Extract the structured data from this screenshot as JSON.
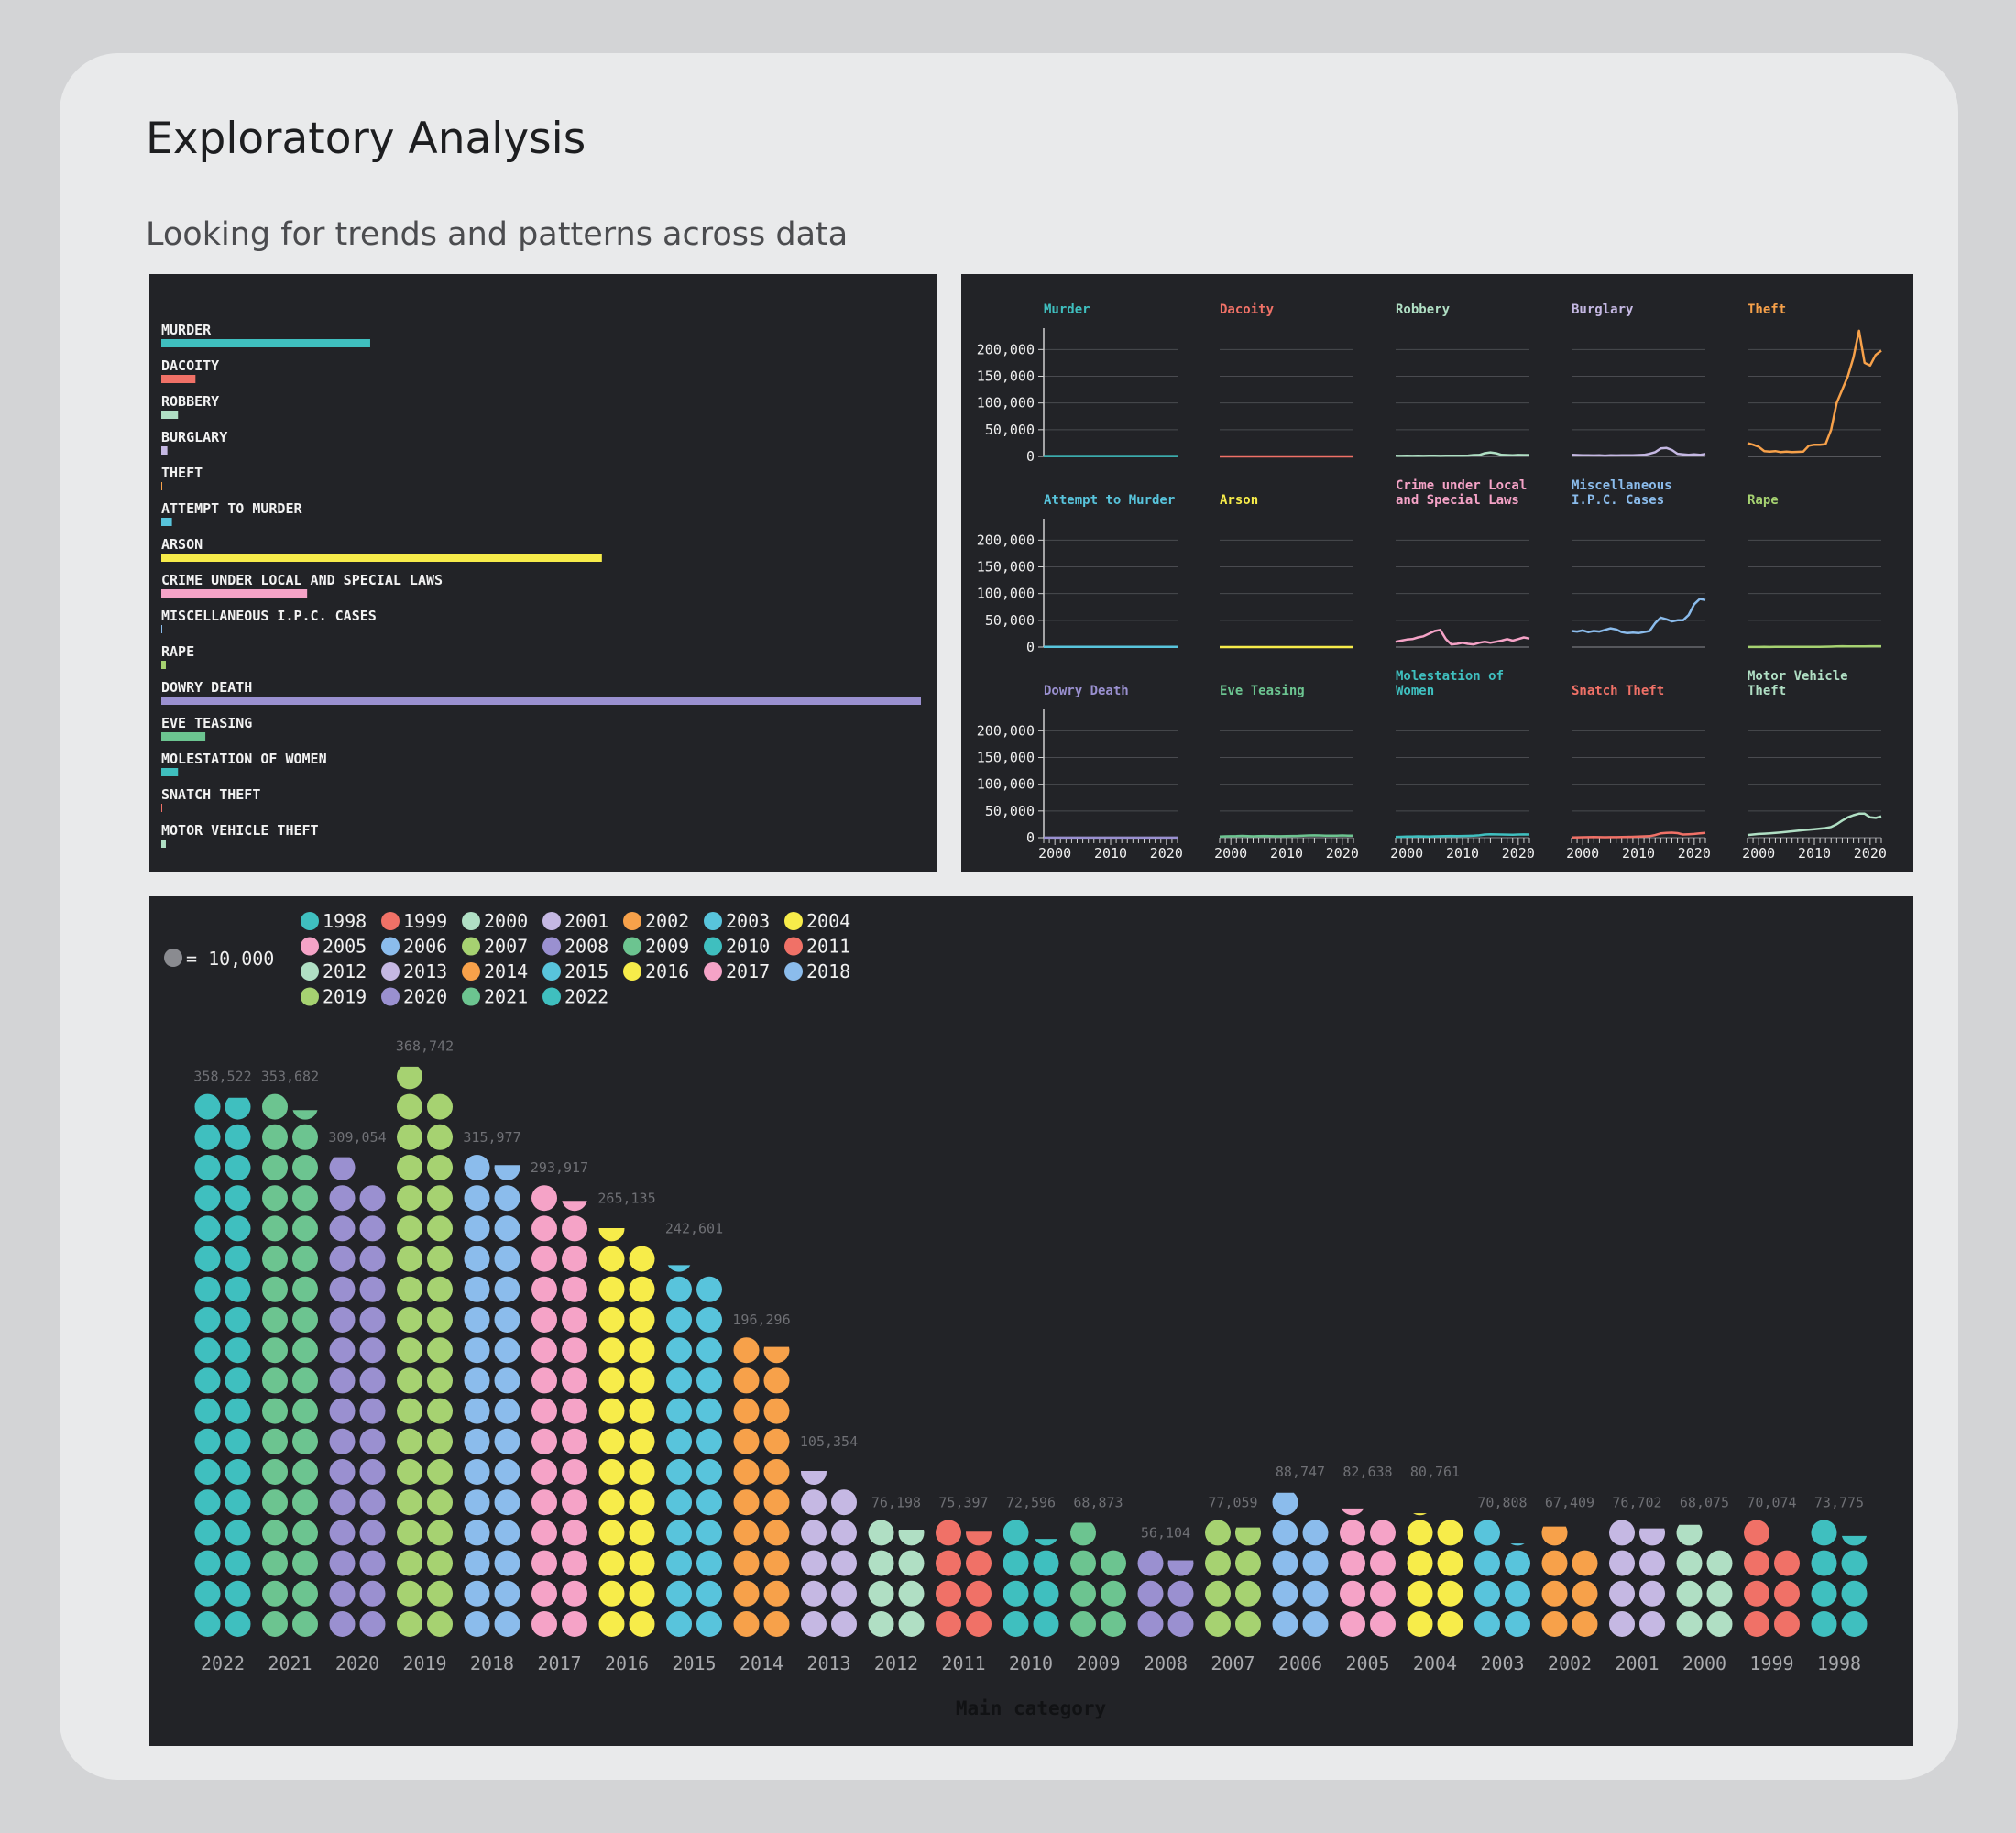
{
  "header": {
    "title": "Exploratory Analysis",
    "subtitle": "Looking for trends and patterns across data"
  },
  "colors": {
    "panel_bg": "#222327",
    "palette": [
      "#3fbfbf",
      "#f07167",
      "#b0dfc4",
      "#c5b8e3",
      "#f7a14a",
      "#58c4dc",
      "#f7ec4a",
      "#f5a3c7",
      "#8bbcec",
      "#a6d271",
      "#9a90d0",
      "#6cc490"
    ]
  },
  "chart_data": [
    {
      "type": "bar",
      "orientation": "horizontal",
      "categories": [
        "MURDER",
        "DACOITY",
        "ROBBERY",
        "BURGLARY",
        "THEFT",
        "ATTEMPT TO MURDER",
        "ARSON",
        "CRIME UNDER LOCAL AND SPECIAL LAWS",
        "MISCELLANEOUS I.P.C. CASES",
        "RAPE",
        "DOWRY DEATH",
        "EVE TEASING",
        "MOLESTATION OF WOMEN",
        "SNATCH THEFT",
        "MOTOR VEHICLE THEFT"
      ],
      "values": [
        27.5,
        4.5,
        2.2,
        0.8,
        0.0,
        1.4,
        58.0,
        19.2,
        0.0,
        0.6,
        100.0,
        5.8,
        2.2,
        0.0,
        0.6
      ],
      "bar_colors": [
        "#3fbfbf",
        "#f07167",
        "#b0dfc4",
        "#c5b8e3",
        "#f7a14a",
        "#58c4dc",
        "#f7ec4a",
        "#f5a3c7",
        "#8bbcec",
        "#a6d271",
        "#9a90d0",
        "#6cc490",
        "#3fbfbf",
        "#f07167",
        "#b0dfc4"
      ]
    },
    {
      "type": "line",
      "facets": [
        {
          "title_lines": [
            "Murder"
          ],
          "color": "#3fbfbf",
          "values": [
            700,
            720,
            700,
            690,
            710,
            700,
            690,
            710,
            700,
            720,
            730,
            700,
            710,
            690,
            700,
            720,
            700,
            710,
            690,
            700,
            720,
            700,
            690,
            710,
            700
          ]
        },
        {
          "title_lines": [
            "Dacoity"
          ],
          "color": "#f07167",
          "values": [
            50,
            50,
            50,
            50,
            50,
            50,
            50,
            50,
            50,
            50,
            50,
            50,
            50,
            50,
            50,
            50,
            50,
            50,
            50,
            50,
            50,
            50,
            50,
            50,
            50
          ]
        },
        {
          "title_lines": [
            "Robbery"
          ],
          "color": "#b0dfc4",
          "values": [
            1200,
            1100,
            1200,
            1100,
            1200,
            1100,
            1300,
            1200,
            1100,
            1200,
            1300,
            1200,
            1300,
            1500,
            2500,
            2800,
            6000,
            7500,
            6000,
            3000,
            2500,
            2300,
            2800,
            2500,
            2600
          ]
        },
        {
          "title_lines": [
            "Burglary"
          ],
          "color": "#c5b8e3",
          "values": [
            3000,
            2500,
            2000,
            2200,
            1800,
            2000,
            1500,
            2000,
            1800,
            2000,
            2200,
            2000,
            2500,
            3000,
            5000,
            8000,
            15000,
            16000,
            12000,
            5000,
            4000,
            3000,
            4000,
            3000,
            4500
          ]
        },
        {
          "title_lines": [
            "Theft"
          ],
          "color": "#f7a14a",
          "values": [
            25000,
            22000,
            18000,
            10000,
            9000,
            10000,
            8000,
            9000,
            8000,
            8500,
            9000,
            20000,
            22000,
            22000,
            23000,
            50000,
            100000,
            125000,
            150000,
            185000,
            235000,
            175000,
            170000,
            190000,
            198000
          ]
        },
        {
          "title_lines": [
            "Attempt to Murder"
          ],
          "color": "#58c4dc",
          "values": [
            300,
            300,
            300,
            300,
            300,
            300,
            300,
            300,
            300,
            300,
            300,
            300,
            300,
            300,
            300,
            350,
            350,
            350,
            350,
            350,
            300,
            300,
            300,
            300,
            300
          ]
        },
        {
          "title_lines": [
            "Arson"
          ],
          "color": "#f7ec4a",
          "values": [
            50,
            50,
            50,
            50,
            50,
            50,
            50,
            50,
            50,
            50,
            50,
            50,
            50,
            50,
            50,
            50,
            50,
            50,
            50,
            50,
            50,
            50,
            50,
            50,
            50
          ]
        },
        {
          "title_lines": [
            "Crime under Local",
            "and Special Laws"
          ],
          "color": "#f5a3c7",
          "values": [
            10000,
            12000,
            14000,
            15000,
            18000,
            20000,
            25000,
            30000,
            32000,
            15000,
            5000,
            6000,
            8000,
            6000,
            5000,
            8000,
            10000,
            8000,
            10000,
            12000,
            15000,
            12000,
            15000,
            18000,
            16000
          ]
        },
        {
          "title_lines": [
            "Miscellaneous",
            "I.P.C. Cases"
          ],
          "color": "#8bbcec",
          "values": [
            30000,
            29000,
            31000,
            28000,
            30000,
            29000,
            32000,
            35000,
            33000,
            28000,
            26000,
            27000,
            26000,
            28000,
            30000,
            45000,
            55000,
            52000,
            48000,
            50000,
            50000,
            60000,
            80000,
            90000,
            88000
          ]
        },
        {
          "title_lines": [
            "Rape"
          ],
          "color": "#a6d271",
          "values": [
            200,
            250,
            220,
            260,
            240,
            280,
            300,
            320,
            350,
            400,
            420,
            450,
            500,
            550,
            600,
            900,
            1200,
            1500,
            1400,
            1300,
            1300,
            1400,
            1500,
            1600,
            1600
          ]
        },
        {
          "title_lines": [
            "Dowry Death"
          ],
          "color": "#9a90d0",
          "values": [
            100,
            120,
            110,
            130,
            120,
            110,
            120,
            130,
            120,
            110,
            100,
            120,
            110,
            120,
            130,
            120,
            110,
            120,
            130,
            120,
            110,
            120,
            130,
            120,
            110
          ]
        },
        {
          "title_lines": [
            "Eve Teasing"
          ],
          "color": "#6cc490",
          "values": [
            2000,
            2500,
            2800,
            3000,
            3500,
            3000,
            2500,
            3000,
            3200,
            3000,
            2800,
            2700,
            3000,
            3200,
            3500,
            4000,
            4200,
            4500,
            4200,
            4000,
            3800,
            4000,
            4200,
            4000,
            3800
          ]
        },
        {
          "title_lines": [
            "Molestation of",
            "Women"
          ],
          "color": "#3fbfbf",
          "values": [
            1500,
            1800,
            2000,
            2200,
            2500,
            2400,
            2300,
            2500,
            2800,
            3000,
            3200,
            3000,
            3300,
            3500,
            3800,
            4500,
            6000,
            6500,
            6200,
            6000,
            5800,
            5500,
            6000,
            6200,
            6000
          ]
        },
        {
          "title_lines": [
            "Snatch Theft"
          ],
          "color": "#f07167",
          "values": [
            500,
            600,
            800,
            1000,
            1200,
            1000,
            900,
            1100,
            1000,
            1200,
            1500,
            1800,
            2000,
            2500,
            3000,
            5000,
            8000,
            9000,
            9500,
            8500,
            6000,
            6500,
            7000,
            8000,
            9000
          ]
        },
        {
          "title_lines": [
            "Motor Vehicle",
            "Theft"
          ],
          "color": "#b0dfc4",
          "values": [
            5000,
            6000,
            7000,
            7500,
            8000,
            9000,
            10000,
            11000,
            12000,
            13000,
            14000,
            15000,
            16000,
            17000,
            18000,
            20000,
            25000,
            32000,
            38000,
            42000,
            45000,
            45000,
            38000,
            37000,
            40000
          ]
        }
      ],
      "x_start": 1998,
      "x_end": 2022,
      "x_ticks": [
        2000,
        2010,
        2020
      ],
      "y_ticks": [
        0,
        50000,
        100000,
        150000,
        200000
      ],
      "y_tick_labels": [
        "0",
        "50,000",
        "100,000",
        "150,000",
        "200,000"
      ],
      "ylim": [
        0,
        240000
      ]
    },
    {
      "type": "waffle",
      "unit": 10000,
      "unit_label": "= 10,000",
      "xlabel": "Main category",
      "legend": [
        {
          "label": "1998",
          "color": "#3fbfbf"
        },
        {
          "label": "1999",
          "color": "#f07167"
        },
        {
          "label": "2000",
          "color": "#b0dfc4"
        },
        {
          "label": "2001",
          "color": "#c5b8e3"
        },
        {
          "label": "2002",
          "color": "#f7a14a"
        },
        {
          "label": "2003",
          "color": "#58c4dc"
        },
        {
          "label": "2004",
          "color": "#f7ec4a"
        },
        {
          "label": "2005",
          "color": "#f5a3c7"
        },
        {
          "label": "2006",
          "color": "#8bbcec"
        },
        {
          "label": "2007",
          "color": "#a6d271"
        },
        {
          "label": "2008",
          "color": "#9a90d0"
        },
        {
          "label": "2009",
          "color": "#6cc490"
        },
        {
          "label": "2010",
          "color": "#3fbfbf"
        },
        {
          "label": "2011",
          "color": "#f07167"
        },
        {
          "label": "2012",
          "color": "#b0dfc4"
        },
        {
          "label": "2013",
          "color": "#c5b8e3"
        },
        {
          "label": "2014",
          "color": "#f7a14a"
        },
        {
          "label": "2015",
          "color": "#58c4dc"
        },
        {
          "label": "2016",
          "color": "#f7ec4a"
        },
        {
          "label": "2017",
          "color": "#f5a3c7"
        },
        {
          "label": "2018",
          "color": "#8bbcec"
        },
        {
          "label": "2019",
          "color": "#a6d271"
        },
        {
          "label": "2020",
          "color": "#9a90d0"
        },
        {
          "label": "2021",
          "color": "#6cc490"
        },
        {
          "label": "2022",
          "color": "#3fbfbf"
        }
      ],
      "columns": [
        {
          "year": "2022",
          "value": 358522,
          "label": "358,522",
          "color": "#3fbfbf"
        },
        {
          "year": "2021",
          "value": 353682,
          "label": "353,682",
          "color": "#6cc490"
        },
        {
          "year": "2020",
          "value": 309054,
          "label": "309,054",
          "color": "#9a90d0"
        },
        {
          "year": "2019",
          "value": 368742,
          "label": "368,742",
          "color": "#a6d271"
        },
        {
          "year": "2018",
          "value": 315977,
          "label": "315,977",
          "color": "#8bbcec"
        },
        {
          "year": "2017",
          "value": 293917,
          "label": "293,917",
          "color": "#f5a3c7"
        },
        {
          "year": "2016",
          "value": 265135,
          "label": "265,135",
          "color": "#f7ec4a"
        },
        {
          "year": "2015",
          "value": 242601,
          "label": "242,601",
          "color": "#58c4dc"
        },
        {
          "year": "2014",
          "value": 196296,
          "label": "196,296",
          "color": "#f7a14a"
        },
        {
          "year": "2013",
          "value": 105354,
          "label": "105,354",
          "color": "#c5b8e3"
        },
        {
          "year": "2012",
          "value": 76198,
          "label": "76,198",
          "color": "#b0dfc4"
        },
        {
          "year": "2011",
          "value": 75397,
          "label": "75,397",
          "color": "#f07167"
        },
        {
          "year": "2010",
          "value": 72596,
          "label": "72,596",
          "color": "#3fbfbf"
        },
        {
          "year": "2009",
          "value": 68873,
          "label": "68,873",
          "color": "#6cc490"
        },
        {
          "year": "2008",
          "value": 56104,
          "label": "56,104",
          "color": "#9a90d0"
        },
        {
          "year": "2007",
          "value": 77059,
          "label": "77,059",
          "color": "#a6d271"
        },
        {
          "year": "2006",
          "value": 88747,
          "label": "88,747",
          "color": "#8bbcec"
        },
        {
          "year": "2005",
          "value": 82638,
          "label": "82,638",
          "color": "#f5a3c7"
        },
        {
          "year": "2004",
          "value": 80761,
          "label": "80,761",
          "color": "#f7ec4a"
        },
        {
          "year": "2003",
          "value": 70808,
          "label": "70,808",
          "color": "#58c4dc"
        },
        {
          "year": "2002",
          "value": 67409,
          "label": "67,409",
          "color": "#f7a14a"
        },
        {
          "year": "2001",
          "value": 76702,
          "label": "76,702",
          "color": "#c5b8e3"
        },
        {
          "year": "2000",
          "value": 68075,
          "label": "68,075",
          "color": "#b0dfc4"
        },
        {
          "year": "1999",
          "value": 70074,
          "label": "70,074",
          "color": "#f07167"
        },
        {
          "year": "1998",
          "value": 73775,
          "label": "73,775",
          "color": "#3fbfbf"
        }
      ]
    }
  ]
}
